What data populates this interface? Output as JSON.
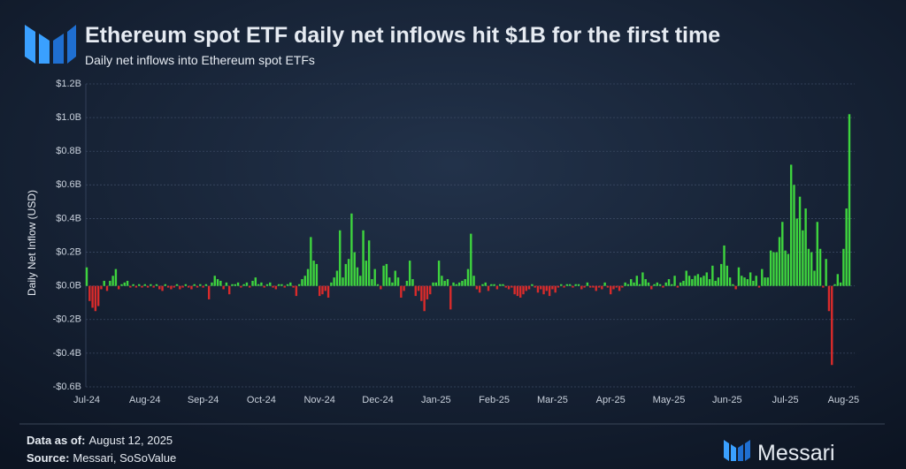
{
  "chart_data": {
    "type": "bar",
    "title": "Ethereum spot ETF daily net inflows hit $1B for the first time",
    "subtitle": "Daily net inflows into Ethereum spot ETFs",
    "y_label": "Daily Net Inflow (USD)",
    "ylim": [
      -0.6,
      1.2
    ],
    "yticks": [
      {
        "value": -0.6,
        "label": "-$0.6B"
      },
      {
        "value": -0.4,
        "label": "-$0.4B"
      },
      {
        "value": -0.2,
        "label": "-$0.2B"
      },
      {
        "value": 0,
        "label": "$0.0B"
      },
      {
        "value": 0.2,
        "label": "$0.2B"
      },
      {
        "value": 0.4,
        "label": "$0.4B"
      },
      {
        "value": 0.6,
        "label": "$0.6B"
      },
      {
        "value": 0.8,
        "label": "$0.8B"
      },
      {
        "value": 1.0,
        "label": "$1.0B"
      },
      {
        "value": 1.2,
        "label": "$1.2B"
      }
    ],
    "grid": true,
    "positive_color": "#3ed43e",
    "negative_color": "#d92b2b",
    "categories": [
      "Jul-24",
      null,
      null,
      null,
      null,
      null,
      null,
      null,
      null,
      null,
      null,
      null,
      null,
      null,
      null,
      null,
      null,
      null,
      null,
      null,
      "Aug-24",
      null,
      null,
      null,
      null,
      null,
      null,
      null,
      null,
      null,
      null,
      null,
      null,
      null,
      null,
      null,
      null,
      null,
      null,
      null,
      "Sep-24",
      null,
      null,
      null,
      null,
      null,
      null,
      null,
      null,
      null,
      null,
      null,
      null,
      null,
      null,
      null,
      null,
      null,
      null,
      null,
      "Oct-24",
      null,
      null,
      null,
      null,
      null,
      null,
      null,
      null,
      null,
      null,
      null,
      null,
      null,
      null,
      null,
      null,
      null,
      null,
      null,
      "Nov-24",
      null,
      null,
      null,
      null,
      null,
      null,
      null,
      null,
      null,
      null,
      null,
      null,
      null,
      null,
      null,
      null,
      null,
      null,
      null,
      "Dec-24",
      null,
      null,
      null,
      null,
      null,
      null,
      null,
      null,
      null,
      null,
      null,
      null,
      null,
      null,
      null,
      null,
      null,
      null,
      null,
      "Jan-25",
      null,
      null,
      null,
      null,
      null,
      null,
      null,
      null,
      null,
      null,
      null,
      null,
      null,
      null,
      null,
      null,
      null,
      null,
      null,
      "Feb-25",
      null,
      null,
      null,
      null,
      null,
      null,
      null,
      null,
      null,
      null,
      null,
      null,
      null,
      null,
      null,
      null,
      null,
      null,
      null,
      "Mar-25",
      null,
      null,
      null,
      null,
      null,
      null,
      null,
      null,
      null,
      null,
      null,
      null,
      null,
      null,
      null,
      null,
      null,
      null,
      null,
      "Apr-25",
      null,
      null,
      null,
      null,
      null,
      null,
      null,
      null,
      null,
      null,
      null,
      null,
      null,
      null,
      null,
      null,
      null,
      null,
      null,
      "May-25",
      null,
      null,
      null,
      null,
      null,
      null,
      null,
      null,
      null,
      null,
      null,
      null,
      null,
      null,
      null,
      null,
      null,
      null,
      null,
      "Jun-25",
      null,
      null,
      null,
      null,
      null,
      null,
      null,
      null,
      null,
      null,
      null,
      null,
      null,
      null,
      null,
      null,
      null,
      null,
      null,
      "Jul-25",
      null,
      null,
      null,
      null,
      null,
      null,
      null,
      null,
      null,
      null,
      null,
      null,
      null,
      null,
      null,
      null,
      null,
      null,
      null,
      "Aug-25",
      null,
      null
    ],
    "values": [
      0.11,
      -0.09,
      -0.13,
      -0.15,
      -0.12,
      -0.02,
      0.03,
      -0.03,
      0.03,
      0.06,
      0.1,
      -0.02,
      0.01,
      0.02,
      0.03,
      -0.01,
      0.01,
      -0.01,
      0.01,
      -0.01,
      0.01,
      -0.01,
      0.01,
      -0.01,
      0.01,
      -0.02,
      -0.03,
      0.01,
      -0.01,
      -0.02,
      -0.01,
      0.01,
      -0.02,
      -0.01,
      0.01,
      -0.01,
      -0.02,
      0.01,
      -0.01,
      0.01,
      -0.01,
      0.01,
      -0.08,
      0.02,
      0.06,
      0.04,
      0.03,
      -0.02,
      0.02,
      -0.05,
      0.01,
      0.01,
      0.02,
      -0.01,
      0.01,
      0.02,
      -0.01,
      0.03,
      0.05,
      0.01,
      0.02,
      -0.01,
      0.01,
      0.02,
      -0.01,
      -0.02,
      0.01,
      0.01,
      -0.01,
      0.01,
      0.02,
      -0.01,
      -0.06,
      0.01,
      0.04,
      0.06,
      0.1,
      0.29,
      0.15,
      0.13,
      -0.06,
      -0.05,
      -0.03,
      -0.07,
      0.02,
      0.05,
      0.09,
      0.33,
      0.05,
      0.13,
      0.16,
      0.43,
      0.2,
      0.11,
      0.06,
      0.33,
      0.15,
      0.27,
      0.04,
      0.1,
      0.01,
      -0.02,
      0.12,
      0.13,
      0.05,
      0.02,
      0.09,
      0.05,
      -0.07,
      -0.03,
      0.03,
      0.15,
      0.04,
      -0.06,
      -0.03,
      -0.09,
      -0.15,
      -0.08,
      -0.05,
      0.02,
      0.02,
      0.15,
      0.06,
      0.03,
      0.04,
      -0.14,
      0.02,
      0.01,
      0.02,
      0.03,
      0.04,
      0.1,
      0.31,
      0.06,
      -0.02,
      -0.04,
      0.01,
      0.02,
      -0.03,
      0.01,
      0.01,
      -0.02,
      0.01,
      0.01,
      -0.01,
      -0.02,
      -0.01,
      -0.05,
      -0.06,
      -0.07,
      -0.05,
      -0.03,
      -0.02,
      0.01,
      -0.01,
      -0.04,
      -0.02,
      -0.05,
      -0.03,
      -0.06,
      -0.02,
      -0.04,
      -0.01,
      0.01,
      -0.01,
      0.01,
      0.01,
      -0.01,
      0.01,
      0.01,
      -0.02,
      -0.01,
      0.02,
      -0.01,
      -0.01,
      -0.03,
      -0.01,
      -0.02,
      0.02,
      -0.01,
      -0.05,
      -0.02,
      -0.01,
      -0.03,
      -0.01,
      0.02,
      0.01,
      0.04,
      0.02,
      0.06,
      0.01,
      0.08,
      0.04,
      0.02,
      -0.02,
      0.01,
      0.02,
      0.01,
      -0.01,
      0.02,
      0.04,
      0.01,
      0.06,
      -0.01,
      0.02,
      0.03,
      0.09,
      0.06,
      0.04,
      0.06,
      0.07,
      0.05,
      0.06,
      0.08,
      0.04,
      0.12,
      0.03,
      0.05,
      0.13,
      0.24,
      0.12,
      0.05,
      0.01,
      -0.02,
      0.11,
      0.06,
      0.05,
      0.04,
      0.08,
      0.03,
      0.06,
      -0.01,
      0.1,
      0.05,
      0.05,
      0.21,
      0.2,
      0.2,
      0.29,
      0.38,
      0.21,
      0.19,
      0.72,
      0.6,
      0.4,
      0.53,
      0.33,
      0.46,
      0.22,
      0.2,
      0.09,
      0.38,
      0.22,
      -0.01,
      0.16,
      -0.15,
      -0.47,
      0.01,
      0.07,
      0.02,
      0.22,
      0.46,
      1.02
    ]
  },
  "footer": {
    "date_label": "Data as of:",
    "date": "August 12, 2025",
    "source_label": "Source:",
    "source": "Messari, SoSoValue",
    "brand": "Messari"
  }
}
